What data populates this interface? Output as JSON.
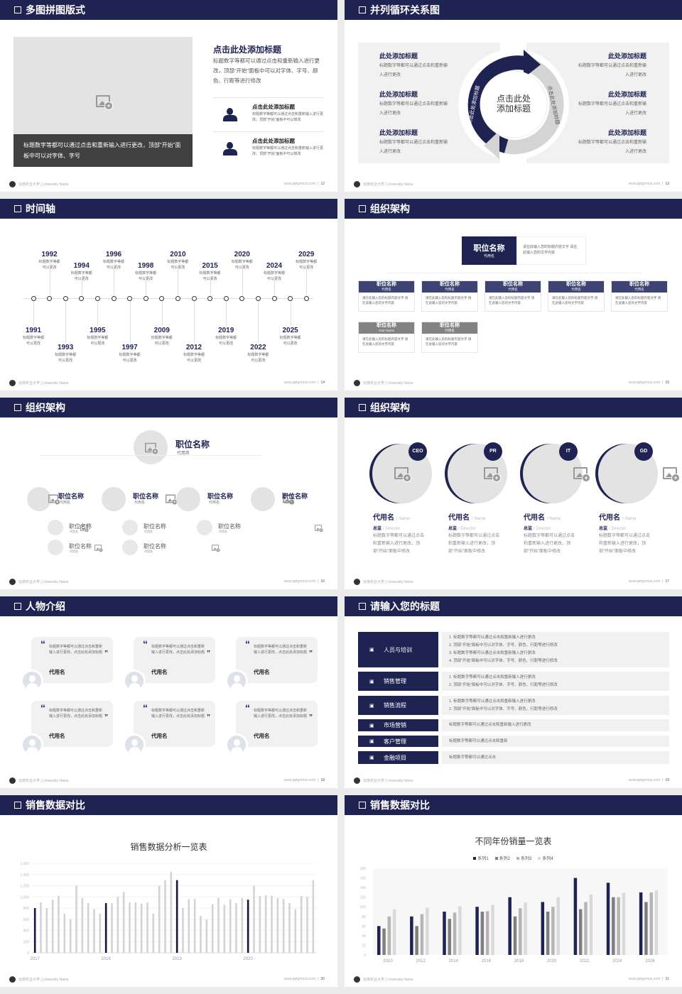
{
  "colors": {
    "navy": "#1f2352",
    "gray_block": "#404040",
    "light": "#f1f1f2",
    "bar_light": "#d3d3d3",
    "series": [
      "#1f2352",
      "#7f7f7f",
      "#b5b5b5",
      "#d9d9d9"
    ]
  },
  "footer": {
    "school": "云南农业大学 | University Name",
    "site": "www.pptgenius.com"
  },
  "s1": {
    "title": "多图拼图版式",
    "page": "12",
    "image_icon": "image-add-icon",
    "caption": "标题数字等都可以通过点击和重新输入进行更改，顶部“开始”面板中可以对字体、字号",
    "heading": "点击此处添加标题",
    "body": "标题数字等都可以通过点击和重新输入进行更改，顶部“开始”面板中可以对字体、字号、颜色、行距等进行修改",
    "items": [
      {
        "icon": "users-icon",
        "title": "点击此处添加标题",
        "text": "标题数字等都可以通过点击和重新输入进行更改，顶部“开始”面板中可以修改"
      },
      {
        "icon": "user-icon",
        "title": "点击此处添加标题",
        "text": "标题数字等都可以通过点击和重新输入进行更改，顶部“开始”面板中可以修改"
      }
    ]
  },
  "s2": {
    "title": "并列循环关系图",
    "page": "13",
    "center": [
      "点击此处",
      "添加标题"
    ],
    "arc_left": "点击此处添加标题",
    "arc_right": "点击此处添加标题",
    "left": [
      {
        "title": "此处添加标题",
        "text": "标题数字等都可以通过点击和重新输入进行更改"
      },
      {
        "title": "此处添加标题",
        "text": "标题数字等都可以通过点击和重新输入进行更改"
      },
      {
        "title": "此处添加标题",
        "text": "标题数字等都可以通过点击和重新输入进行更改"
      }
    ],
    "right": [
      {
        "title": "此处添加标题",
        "text": "标题数字等都可以通过点击和重新输入进行更改"
      },
      {
        "title": "此处添加标题",
        "text": "标题数字等都可以通过点击和重新输入进行更改"
      },
      {
        "title": "此处添加标题",
        "text": "标题数字等都可以通过点击和重新输入进行更改"
      }
    ]
  },
  "s3": {
    "title": "时间轴",
    "page": "14",
    "text": "标题数字等都可以更改",
    "events": [
      {
        "year": "1991",
        "side": "bottom"
      },
      {
        "year": "1992",
        "side": "top"
      },
      {
        "year": "1993",
        "side": "bottom"
      },
      {
        "year": "1994",
        "side": "top"
      },
      {
        "year": "1995",
        "side": "bottom"
      },
      {
        "year": "1996",
        "side": "top"
      },
      {
        "year": "1997",
        "side": "bottom"
      },
      {
        "year": "1998",
        "side": "top"
      },
      {
        "year": "2009",
        "side": "bottom"
      },
      {
        "year": "2010",
        "side": "top"
      },
      {
        "year": "2012",
        "side": "bottom"
      },
      {
        "year": "2015",
        "side": "top"
      },
      {
        "year": "2019",
        "side": "bottom"
      },
      {
        "year": "2020",
        "side": "top"
      },
      {
        "year": "2022",
        "side": "bottom"
      },
      {
        "year": "2024",
        "side": "top"
      },
      {
        "year": "2025",
        "side": "bottom"
      },
      {
        "year": "2029",
        "side": "top"
      }
    ]
  },
  "s4": {
    "title": "组织架构",
    "page": "15",
    "top": {
      "title": "职位名称",
      "sub": "代用名",
      "desc": "请在此输入您的标题内容文字 请在此输入您的文字内容"
    },
    "nodes": [
      {
        "title": "职位名称",
        "sub": "代用名",
        "desc": "请在此输入您的标题内容文字 请在此输入您的文字内容",
        "tone": "navy"
      },
      {
        "title": "职位名称",
        "sub": "代用名",
        "desc": "请在此输入您的标题内容文字 请在此输入您的文字内容",
        "tone": "navy"
      },
      {
        "title": "职位名称",
        "sub": "代用名",
        "desc": "请在此输入您的标题内容文字 请在此输入您的文字内容",
        "tone": "navy"
      },
      {
        "title": "职位名称",
        "sub": "代用名",
        "desc": "请在此输入您的标题内容文字 请在此输入您的文字内容",
        "tone": "navy"
      },
      {
        "title": "职位名称",
        "sub": "代用名",
        "desc": "请在此输入您的标题内容文字 请在此输入您的文字内容",
        "tone": "navy"
      },
      {
        "title": "职位名称",
        "sub": "Your Name",
        "desc": "请在此输入您的标题内容文字 请在此输入您的文字内容",
        "tone": "gray"
      },
      {
        "title": "职位名称",
        "sub": "代用名",
        "desc": "请在此输入您的标题内容文字 请在此输入您的文字内容",
        "tone": "gray"
      }
    ]
  },
  "s5": {
    "title": "组织架构",
    "page": "16",
    "top": {
      "title": "职位名称",
      "sub": "代用名"
    },
    "branches": [
      {
        "title": "职位名称",
        "sub": "代用名",
        "children": [
          {
            "title": "职位名称",
            "sub": "代用名"
          },
          {
            "title": "职位名称",
            "sub": "代用名"
          }
        ]
      },
      {
        "title": "职位名称",
        "sub": "代用名",
        "children": [
          {
            "title": "职位名称",
            "sub": "代用名"
          },
          {
            "title": "职位名称",
            "sub": "代用名"
          }
        ]
      },
      {
        "title": "职位名称",
        "sub": "代用名",
        "children": [
          {
            "title": "职位名称",
            "sub": "代用名"
          }
        ]
      },
      {
        "title": "职位名称",
        "sub": "代用名",
        "children": []
      }
    ]
  },
  "s6": {
    "title": "组织架构",
    "page": "17",
    "people": [
      {
        "badge": "CEO",
        "name": "代用名",
        "name_en": "/ Name",
        "role": "总监",
        "role_en": "/ Director",
        "desc": "标题数字等都可以通过点击和重新输入进行更改，顶部“开始”面板中修改"
      },
      {
        "badge": "PR",
        "name": "代用名",
        "name_en": "/ Name",
        "role": "总监",
        "role_en": "/ Director",
        "desc": "标题数字等都可以通过点击和重新输入进行更改，顶部“开始”面板中修改"
      },
      {
        "badge": "IT",
        "name": "代用名",
        "name_en": "/ Name",
        "role": "总监",
        "role_en": "/ Director",
        "desc": "标题数字等都可以通过点击和重新输入进行更改，顶部“开始”面板中修改"
      },
      {
        "badge": "GD",
        "name": "代用名",
        "name_en": "/ Name",
        "role": "总监",
        "role_en": "/ Director",
        "desc": "标题数字等都可以通过点击和重新输入进行更改，顶部“开始”面板中修改"
      }
    ]
  },
  "s7": {
    "title": "人物介绍",
    "page": "18",
    "cards": [
      {
        "quote": "标题数字等都可以通过点击和重新输入进行更改，点击此处添加标题",
        "name": "代用名"
      },
      {
        "quote": "标题数字等都可以通过点击和重新输入进行更改，点击此处添加标题",
        "name": "代用名"
      },
      {
        "quote": "标题数字等都可以通过点击和重新输入进行更改，点击此处添加标题",
        "name": "代用名"
      },
      {
        "quote": "标题数字等都可以通过点击和重新输入进行更改，点击此处添加标题",
        "name": "代用名"
      },
      {
        "quote": "标题数字等都可以通过点击和重新输入进行更改，点击此处添加标题",
        "name": "代用名"
      },
      {
        "quote": "标题数字等都可以通过点击和重新输入进行更改，点击此处添加标题",
        "name": "代用名"
      }
    ]
  },
  "s8": {
    "title": "请输入您的标题",
    "page": "19",
    "rows": [
      {
        "icon": "training-icon",
        "label": "人员与培训",
        "lines": [
          "1.  标题数字等都可以通过点击和重新输入进行更改",
          "2.  顶部“开始”面板中可以对字体、字号、颜色、行距等进行修改",
          "3.  标题数字等都可以通过点击和重新输入进行更改",
          "4.  顶部“开始”面板中可以对字体、字号、颜色、行距等进行修改"
        ]
      },
      {
        "icon": "sales-user-icon",
        "label": "销售管理",
        "lines": [
          "1.  标题数字等都可以通过点击和重新输入进行更改",
          "2.  顶部“开始”面板中可以对字体、字号、颜色、行距等进行修改"
        ]
      },
      {
        "icon": "cycle-icon",
        "label": "销售流程",
        "lines": [
          "1.  标题数字等都可以通过点击和重新输入进行更改",
          "2.  顶部“开始”面板中可以对字体、字号、颜色、行距等进行修改"
        ]
      },
      {
        "icon": "bar-chart-icon",
        "label": "市场营销",
        "lines": [
          "标题数字等都可以通过点击和重新输入进行更改"
        ]
      },
      {
        "icon": "customers-icon",
        "label": "客户管理",
        "lines": [
          "标题数字等都可以通过点击和重新"
        ]
      },
      {
        "icon": "finance-icon",
        "label": "金融项目",
        "lines": [
          "标题数字等都可以通过点击"
        ]
      }
    ]
  },
  "s9": {
    "title": "销售数据对比",
    "page": "20"
  },
  "s10": {
    "title": "销售数据对比",
    "page": "21"
  },
  "chart_data": [
    {
      "type": "bar",
      "title": "销售数据分析一览表",
      "ylim": [
        0,
        1600
      ],
      "yticks": [
        "0",
        "200",
        "400",
        "600",
        "800",
        "1,000",
        "1,200",
        "1,400",
        "1,600"
      ],
      "x_labels": [
        "2017",
        "2018",
        "2019",
        "2020"
      ],
      "highlight_indices": [
        0,
        12,
        24,
        36
      ],
      "grid": true,
      "values": [
        800,
        900,
        800,
        950,
        1020,
        700,
        600,
        1200,
        980,
        890,
        780,
        700,
        890,
        890,
        1000,
        1090,
        900,
        900,
        880,
        900,
        700,
        1200,
        1300,
        1450,
        1300,
        800,
        960,
        965,
        660,
        590,
        870,
        980,
        860,
        960,
        890,
        980,
        950,
        1200,
        1015,
        1030,
        1020,
        980,
        965,
        890,
        780,
        1015,
        1000,
        1300
      ]
    },
    {
      "type": "bar",
      "title": "不同年份销量一览表",
      "ylim": [
        0,
        180
      ],
      "yticks": [
        "0",
        "20",
        "40",
        "60",
        "80",
        "100",
        "120",
        "140",
        "160",
        "180"
      ],
      "legend": "top",
      "categories": [
        "2010",
        "2012",
        "2014",
        "2016",
        "2018",
        "2020",
        "2022",
        "2024",
        "2026"
      ],
      "series": [
        {
          "name": "系列1",
          "values": [
            60,
            80,
            90,
            100,
            120,
            110,
            160,
            150,
            130
          ]
        },
        {
          "name": "系列2",
          "values": [
            55,
            60,
            75,
            90,
            80,
            90,
            95,
            120,
            110
          ]
        },
        {
          "name": "系列3",
          "values": [
            80,
            85,
            88,
            91,
            97,
            100,
            110,
            120,
            130
          ]
        },
        {
          "name": "系列4",
          "values": [
            95,
            98,
            101,
            104,
            109,
            120,
            126,
            129,
            134
          ]
        }
      ]
    }
  ]
}
